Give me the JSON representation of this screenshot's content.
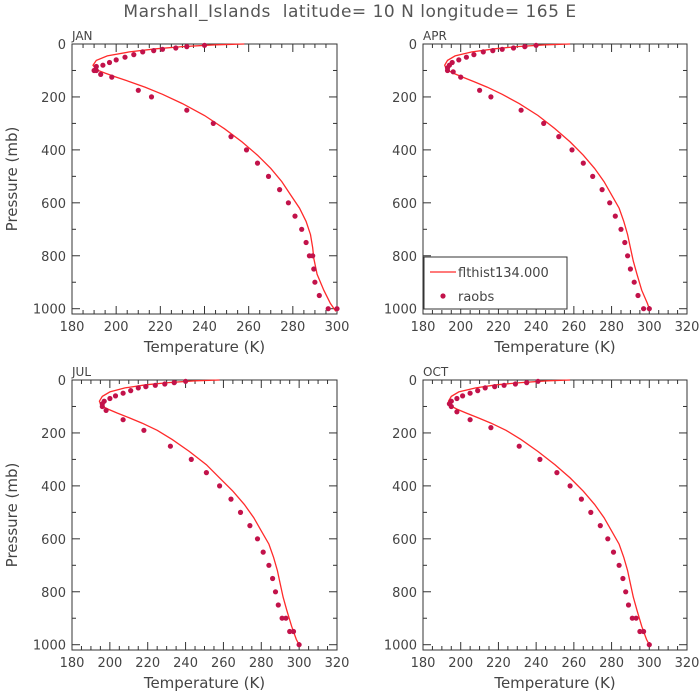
{
  "title": "Marshall_Islands  latitude= 10 N longitude= 165 E",
  "colors": {
    "line": "#ff2a2a",
    "obs": "#c2124a",
    "axis": "#333333",
    "text": "#444444"
  },
  "legend": {
    "line_label": "flthist134.000",
    "obs_label": "raobs",
    "placement": "lower-left, APR panel"
  },
  "chart_data": [
    {
      "type": "line",
      "panel_label": "JAN",
      "xlabel": "Temperature (K)",
      "ylabel": "Pressure (mb)",
      "xlim": [
        180,
        300
      ],
      "ylim": [
        1020,
        0
      ],
      "xticks": [
        180,
        200,
        220,
        240,
        260,
        280,
        300
      ],
      "yticks": [
        0,
        200,
        400,
        600,
        800,
        1000
      ],
      "grid": false,
      "series": [
        {
          "name": "flthist134.000",
          "kind": "line",
          "x": [
            258,
            245,
            230,
            218,
            206,
            196,
            191,
            189.5,
            191,
            195,
            200,
            206,
            213,
            221,
            230,
            240,
            249,
            257,
            264,
            270,
            275,
            279,
            283,
            286,
            288,
            289,
            289.5,
            291,
            294,
            297,
            299.5
          ],
          "y": [
            0,
            3,
            10,
            18,
            30,
            45,
            62,
            80,
            97,
            110,
            125,
            142,
            163,
            190,
            225,
            270,
            320,
            370,
            420,
            470,
            520,
            570,
            620,
            670,
            720,
            770,
            810,
            870,
            930,
            980,
            1010
          ]
        },
        {
          "name": "raobs",
          "kind": "scatter",
          "x": [
            240,
            232,
            227,
            221,
            217,
            212,
            208,
            204,
            200,
            197,
            194,
            191,
            190,
            191,
            193,
            198,
            210,
            216,
            232,
            244,
            252,
            259,
            264,
            269,
            274,
            278,
            281,
            284,
            286,
            287.5,
            289,
            289.5,
            290,
            292,
            296,
            300
          ],
          "y": [
            5,
            10,
            15,
            20,
            25,
            30,
            40,
            50,
            60,
            70,
            80,
            85,
            100,
            100,
            115,
            125,
            175,
            200,
            250,
            300,
            350,
            400,
            450,
            500,
            550,
            600,
            650,
            700,
            750,
            800,
            800,
            850,
            900,
            950,
            1000,
            1000
          ]
        }
      ]
    },
    {
      "type": "line",
      "panel_label": "APR",
      "xlabel": "Temperature (K)",
      "ylabel": "",
      "xlim": [
        180,
        320
      ],
      "ylim": [
        1020,
        0
      ],
      "xticks": [
        180,
        200,
        220,
        240,
        260,
        280,
        300,
        320
      ],
      "yticks": [
        0,
        200,
        400,
        600,
        800,
        1000
      ],
      "grid": false,
      "series": [
        {
          "name": "flthist134.000",
          "kind": "line",
          "x": [
            258,
            245,
            230,
            218,
            206,
            197,
            193,
            191.5,
            192.5,
            196,
            201,
            207,
            214,
            222,
            231,
            241,
            250,
            258,
            265,
            271,
            276,
            280,
            284,
            286.5,
            288.5,
            290,
            291.5,
            293.5,
            296,
            299,
            300
          ],
          "y": [
            0,
            3,
            10,
            18,
            30,
            45,
            62,
            80,
            97,
            110,
            125,
            142,
            163,
            190,
            225,
            270,
            320,
            370,
            420,
            470,
            520,
            570,
            620,
            670,
            720,
            770,
            820,
            870,
            930,
            980,
            1000
          ]
        },
        {
          "name": "raobs",
          "kind": "scatter",
          "x": [
            240,
            234,
            228,
            222,
            217,
            212,
            207,
            203,
            199,
            195.5,
            194,
            193,
            193,
            196,
            200,
            210,
            216,
            232,
            244,
            252,
            259,
            265,
            270,
            275,
            279,
            282,
            285,
            287,
            288.5,
            290,
            292,
            294,
            297,
            300
          ],
          "y": [
            5,
            10,
            15,
            20,
            25,
            30,
            40,
            50,
            60,
            70,
            80,
            90,
            100,
            105,
            125,
            175,
            200,
            250,
            300,
            350,
            400,
            450,
            500,
            550,
            600,
            650,
            700,
            750,
            800,
            850,
            900,
            950,
            1000,
            1000
          ]
        }
      ]
    },
    {
      "type": "line",
      "panel_label": "JUL",
      "xlabel": "Temperature (K)",
      "ylabel": "Pressure (mb)",
      "xlim": [
        180,
        320
      ],
      "ylim": [
        1020,
        0
      ],
      "xticks": [
        180,
        200,
        220,
        240,
        260,
        280,
        300,
        320
      ],
      "yticks": [
        0,
        200,
        400,
        600,
        800,
        1000
      ],
      "grid": false,
      "series": [
        {
          "name": "flthist134.000",
          "kind": "line",
          "x": [
            258,
            245,
            231,
            219,
            208,
            200,
            196,
            194.5,
            195.5,
            199,
            204,
            210,
            217,
            225,
            233,
            242,
            251,
            258,
            265,
            271,
            276,
            280,
            284,
            286.5,
            288.5,
            290,
            291.5,
            293.5,
            296,
            298.5,
            300
          ],
          "y": [
            0,
            3,
            10,
            18,
            30,
            45,
            62,
            80,
            97,
            110,
            125,
            142,
            163,
            190,
            225,
            270,
            320,
            370,
            420,
            470,
            520,
            570,
            620,
            670,
            720,
            770,
            820,
            870,
            930,
            980,
            1000
          ]
        },
        {
          "name": "raobs",
          "kind": "scatter",
          "x": [
            240,
            234,
            229,
            224,
            219,
            215,
            211,
            207,
            203,
            200,
            197,
            196,
            196,
            198,
            207,
            218,
            232,
            243,
            251,
            258,
            264,
            269,
            274,
            278,
            281,
            284,
            286,
            287.5,
            289,
            291,
            293,
            295,
            297,
            300
          ],
          "y": [
            5,
            10,
            15,
            20,
            25,
            30,
            40,
            50,
            60,
            70,
            80,
            90,
            100,
            115,
            150,
            190,
            250,
            300,
            350,
            400,
            450,
            500,
            550,
            600,
            650,
            700,
            750,
            800,
            850,
            900,
            900,
            950,
            950,
            1000
          ]
        }
      ]
    },
    {
      "type": "line",
      "panel_label": "OCT",
      "xlabel": "Temperature (K)",
      "ylabel": "",
      "xlim": [
        180,
        320
      ],
      "ylim": [
        1020,
        0
      ],
      "xticks": [
        180,
        200,
        220,
        240,
        260,
        280,
        300,
        320
      ],
      "yticks": [
        0,
        200,
        400,
        600,
        800,
        1000
      ],
      "grid": false,
      "series": [
        {
          "name": "flthist134.000",
          "kind": "line",
          "x": [
            258,
            246,
            232,
            219,
            208,
            199,
            195,
            193.5,
            194.5,
            198,
            203,
            209,
            216,
            224,
            232,
            241,
            250,
            258,
            265,
            271,
            276,
            280,
            284,
            286.5,
            288.5,
            290,
            291.5,
            293.5,
            296,
            298.5,
            300
          ],
          "y": [
            0,
            3,
            10,
            18,
            30,
            45,
            62,
            80,
            97,
            110,
            125,
            142,
            163,
            190,
            225,
            270,
            320,
            370,
            420,
            470,
            520,
            570,
            620,
            670,
            720,
            770,
            820,
            870,
            930,
            980,
            1000
          ]
        },
        {
          "name": "raobs",
          "kind": "scatter",
          "x": [
            241,
            235,
            229,
            223,
            218,
            213,
            209,
            205,
            201,
            198,
            195,
            194,
            195,
            198,
            205,
            216,
            231,
            242,
            251,
            258,
            264,
            269,
            274,
            278,
            281,
            284,
            286,
            287.5,
            289,
            291,
            293,
            295,
            297,
            300
          ],
          "y": [
            5,
            10,
            15,
            20,
            25,
            30,
            40,
            50,
            60,
            70,
            80,
            90,
            100,
            120,
            150,
            180,
            250,
            300,
            350,
            400,
            450,
            500,
            550,
            600,
            650,
            700,
            750,
            800,
            850,
            900,
            900,
            950,
            950,
            1000
          ]
        }
      ]
    }
  ]
}
